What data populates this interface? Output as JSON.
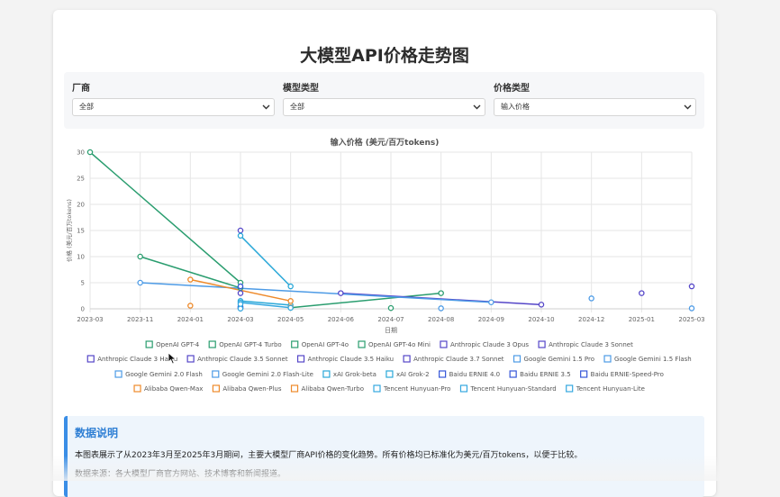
{
  "page": {
    "title": "大模型API价格走势图"
  },
  "filters": {
    "vendor": {
      "label": "厂商",
      "value": "全部"
    },
    "model_type": {
      "label": "模型类型",
      "value": "全部"
    },
    "price_type": {
      "label": "价格类型",
      "value": "输入价格"
    }
  },
  "info": {
    "title": "数据说明",
    "paragraphs": [
      "本图表展示了从2023年3月至2025年3月期间，主要大模型厂商API价格的变化趋势。所有价格均已标准化为美元/百万tokens，以便于比较。",
      "数据来源：各大模型厂商官方网站、技术博客和新闻报道。"
    ]
  },
  "chart_data": {
    "type": "line",
    "title": "输入价格 (美元/百万tokens)",
    "xlabel": "日期",
    "ylabel": "价格 (美元/百万tokens)",
    "x_ticks": [
      "2023-03",
      "2023-11",
      "2024-01",
      "2024-03",
      "2024-05",
      "2024-06",
      "2024-07",
      "2024-08",
      "2024-09",
      "2024-10",
      "2024-12",
      "2025-01",
      "2025-03"
    ],
    "y_ticks": [
      0,
      5,
      10,
      15,
      20,
      25,
      30
    ],
    "ylim": [
      0,
      30
    ],
    "grid": true,
    "legend_position": "bottom",
    "series": [
      {
        "name": "OpenAI GPT-4",
        "color": "#2a9d6f",
        "points": [
          [
            "2023-03",
            30
          ],
          [
            "2024-03",
            5
          ]
        ]
      },
      {
        "name": "OpenAI GPT-4 Turbo",
        "color": "#2a9d6f",
        "points": [
          [
            "2023-11",
            10
          ],
          [
            "2024-03",
            4
          ]
        ]
      },
      {
        "name": "OpenAI GPT-4o",
        "color": "#2a9d6f",
        "points": [
          [
            "2024-05",
            0.2
          ],
          [
            "2024-08",
            3
          ]
        ]
      },
      {
        "name": "OpenAI GPT-4o Mini",
        "color": "#2a9d6f",
        "points": [
          [
            "2024-07",
            0.15
          ]
        ]
      },
      {
        "name": "Anthropic Claude 3 Opus",
        "color": "#5546c8",
        "points": [
          [
            "2024-03",
            15
          ]
        ]
      },
      {
        "name": "Anthropic Claude 3 Sonnet",
        "color": "#5546c8",
        "points": [
          [
            "2024-03",
            3
          ]
        ]
      },
      {
        "name": "Anthropic Claude 3 Haiku",
        "color": "#5546c8",
        "points": [
          [
            "2024-03",
            0.25
          ]
        ]
      },
      {
        "name": "Anthropic Claude 3.5 Sonnet",
        "color": "#5546c8",
        "points": [
          [
            "2024-06",
            3
          ],
          [
            "2024-10",
            0.8
          ]
        ]
      },
      {
        "name": "Anthropic Claude 3.5 Haiku",
        "color": "#5546c8",
        "points": [
          [
            "2025-01",
            3
          ]
        ]
      },
      {
        "name": "Anthropic Claude 3.7 Sonnet",
        "color": "#5546c8",
        "points": [
          [
            "2025-03",
            4.3
          ]
        ]
      },
      {
        "name": "Google Gemini 1.5 Pro",
        "color": "#4d9be6",
        "points": [
          [
            "2023-11",
            5
          ],
          [
            "2024-09",
            1.25
          ]
        ]
      },
      {
        "name": "Google Gemini 1.5 Flash",
        "color": "#4d9be6",
        "points": [
          [
            "2024-08",
            0.1
          ]
        ]
      },
      {
        "name": "Google Gemini 2.0 Flash",
        "color": "#4d9be6",
        "points": [
          [
            "2024-12",
            2
          ]
        ]
      },
      {
        "name": "Google Gemini 2.0 Flash-Lite",
        "color": "#4d9be6",
        "points": [
          [
            "2025-03",
            0.1
          ]
        ]
      },
      {
        "name": "xAI Grok-beta",
        "color": "#2aa8d8",
        "points": [
          [
            "2024-03",
            14
          ],
          [
            "2024-05",
            4.3
          ]
        ]
      },
      {
        "name": "xAI Grok-2",
        "color": "#2aa8d8",
        "points": [
          [
            "2024-03",
            1.5
          ],
          [
            "2024-05",
            0.7
          ]
        ]
      },
      {
        "name": "Baidu ERNIE 4.0",
        "color": "#3556d8",
        "points": [
          [
            "2024-03",
            4.3
          ]
        ]
      },
      {
        "name": "Baidu ERNIE 3.5",
        "color": "#3556d8",
        "points": [
          [
            "2024-03",
            0.4
          ]
        ]
      },
      {
        "name": "Baidu ERNIE-Speed-Pro",
        "color": "#3556d8",
        "points": [
          [
            "2024-03",
            0.1
          ]
        ]
      },
      {
        "name": "Alibaba Qwen-Max",
        "color": "#ee8a2a",
        "points": [
          [
            "2024-01",
            5.6
          ],
          [
            "2024-05",
            1.5
          ]
        ]
      },
      {
        "name": "Alibaba Qwen-Plus",
        "color": "#ee8a2a",
        "points": [
          [
            "2024-01",
            0.6
          ]
        ]
      },
      {
        "name": "Alibaba Qwen-Turbo",
        "color": "#ee8a2a",
        "points": [
          [
            "2024-05",
            0.3
          ]
        ]
      },
      {
        "name": "Tencent Hunyuan-Pro",
        "color": "#35a8e0",
        "points": [
          [
            "2024-03",
            1.2
          ],
          [
            "2024-05",
            0.2
          ]
        ]
      },
      {
        "name": "Tencent Hunyuan-Standard",
        "color": "#35a8e0",
        "points": [
          [
            "2024-03",
            0.9
          ]
        ]
      },
      {
        "name": "Tencent Hunyuan-Lite",
        "color": "#35a8e0",
        "points": [
          [
            "2024-03",
            0.05
          ]
        ]
      }
    ]
  }
}
